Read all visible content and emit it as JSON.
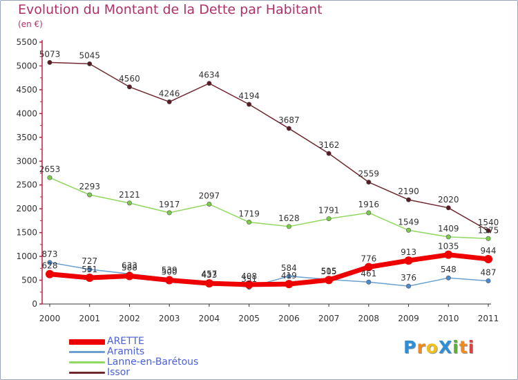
{
  "title": "Evolution du Montant de la Dette par Habitant",
  "subtitle": "(en €)",
  "logo_text": "ProXiti",
  "colors": {
    "title": "#b0306a",
    "axis_text": "#333333",
    "legend_text": "#4a5fd8"
  },
  "chart_data": {
    "type": "line",
    "title": "Evolution du Montant de la Dette par Habitant",
    "ylabel": "(en €)",
    "xlabel": "",
    "x": [
      "2000",
      "2001",
      "2002",
      "2003",
      "2004",
      "2005",
      "2006",
      "2007",
      "2008",
      "2009",
      "2010",
      "2011"
    ],
    "ylim": [
      0,
      5500
    ],
    "yticks": [
      0,
      500,
      1000,
      1500,
      2000,
      2500,
      3000,
      3500,
      4000,
      4500,
      5000,
      5500
    ],
    "grid": false,
    "legend": "bottom-left",
    "series": [
      {
        "name": "ARETTE",
        "color": "#ee0000",
        "marker": "#ee0000",
        "width": 7,
        "values": [
          628,
          551,
          588,
          500,
          433,
          408,
          419,
          505,
          776,
          913,
          1035,
          944
        ],
        "labels": [
          "628",
          "551",
          "588",
          "500",
          "433",
          "408",
          "419",
          "505",
          "776",
          "913",
          "1035",
          "944"
        ]
      },
      {
        "name": "Aramits",
        "color": "#6a9fd0",
        "marker": "#4a8ad0",
        "width": 1.5,
        "values": [
          873,
          727,
          633,
          539,
          457,
          351,
          584,
          515,
          461,
          376,
          548,
          487
        ],
        "labels": [
          "873",
          "727",
          "633",
          "539",
          "457",
          "351",
          "584",
          "515",
          "461",
          "376",
          "548",
          "487"
        ]
      },
      {
        "name": "Lanne-en-Barétous",
        "color": "#8fd860",
        "marker": "#7acc48",
        "width": 1.5,
        "values": [
          2653,
          2293,
          2121,
          1917,
          2097,
          1719,
          1628,
          1791,
          1916,
          1549,
          1409,
          1375
        ],
        "labels": [
          "2653",
          "2293",
          "2121",
          "1917",
          "2097",
          "1719",
          "1628",
          "1791",
          "1916",
          "1549",
          "1409",
          "1375"
        ]
      },
      {
        "name": "Issor",
        "color": "#702830",
        "marker": "#5a1a22",
        "width": 1.5,
        "values": [
          5073,
          5045,
          4560,
          4246,
          4634,
          4194,
          3687,
          3162,
          2559,
          2190,
          2020,
          1540
        ],
        "labels": [
          "5073",
          "5045",
          "4560",
          "4246",
          "4634",
          "4194",
          "3687",
          "3162",
          "2559",
          "2190",
          "2020",
          "1540"
        ]
      }
    ]
  }
}
